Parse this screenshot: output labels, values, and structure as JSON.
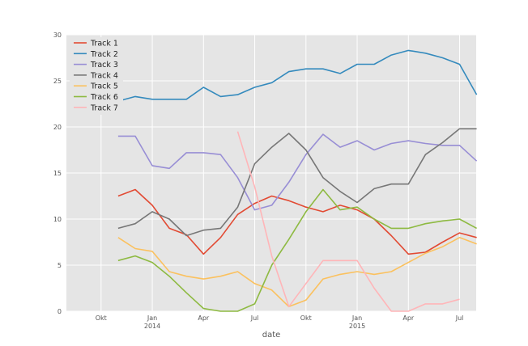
{
  "chart_data": {
    "type": "line",
    "xlabel": "date",
    "ylabel": "",
    "ylim": [
      0,
      30
    ],
    "yticks": [
      0,
      5,
      10,
      15,
      20,
      25,
      30
    ],
    "x_tick_labels": [
      {
        "date": "2013-10",
        "label": "Okt"
      },
      {
        "date": "2014-01",
        "label": "Jan",
        "sub": "2014"
      },
      {
        "date": "2014-04",
        "label": "Apr"
      },
      {
        "date": "2014-07",
        "label": "Jul"
      },
      {
        "date": "2014-10",
        "label": "Okt"
      },
      {
        "date": "2015-01",
        "label": "Jan",
        "sub": "2015"
      },
      {
        "date": "2015-04",
        "label": "Apr"
      },
      {
        "date": "2015-07",
        "label": "Jul"
      }
    ],
    "grid": true,
    "legend_position": "top-left",
    "background": "#e5e5e5",
    "series": [
      {
        "name": "Track 1",
        "color": "#e24a33",
        "points": [
          [
            "2013-11",
            12.5
          ],
          [
            "2013-12",
            13.2
          ],
          [
            "2014-01",
            11.5
          ],
          [
            "2014-02",
            9.0
          ],
          [
            "2014-03",
            8.3
          ],
          [
            "2014-04",
            6.2
          ],
          [
            "2014-05",
            8.0
          ],
          [
            "2014-06",
            10.5
          ],
          [
            "2014-07",
            11.7
          ],
          [
            "2014-08",
            12.5
          ],
          [
            "2014-09",
            12.0
          ],
          [
            "2014-10",
            11.3
          ],
          [
            "2014-11",
            10.8
          ],
          [
            "2014-12",
            11.5
          ],
          [
            "2015-01",
            11.0
          ],
          [
            "2015-02",
            10.0
          ],
          [
            "2015-03",
            8.2
          ],
          [
            "2015-04",
            6.2
          ],
          [
            "2015-05",
            6.4
          ],
          [
            "2015-06",
            7.5
          ],
          [
            "2015-07",
            8.5
          ],
          [
            "2015-08",
            8.0
          ]
        ]
      },
      {
        "name": "Track 2",
        "color": "#348abd",
        "points": [
          [
            "2013-11",
            22.8
          ],
          [
            "2013-12",
            23.3
          ],
          [
            "2014-01",
            23.0
          ],
          [
            "2014-02",
            23.0
          ],
          [
            "2014-03",
            23.0
          ],
          [
            "2014-04",
            24.3
          ],
          [
            "2014-05",
            23.3
          ],
          [
            "2014-06",
            23.5
          ],
          [
            "2014-07",
            24.3
          ],
          [
            "2014-08",
            24.8
          ],
          [
            "2014-09",
            26.0
          ],
          [
            "2014-10",
            26.3
          ],
          [
            "2014-11",
            26.3
          ],
          [
            "2014-12",
            25.8
          ],
          [
            "2015-01",
            26.8
          ],
          [
            "2015-02",
            26.8
          ],
          [
            "2015-03",
            27.8
          ],
          [
            "2015-04",
            28.3
          ],
          [
            "2015-05",
            28.0
          ],
          [
            "2015-06",
            27.5
          ],
          [
            "2015-07",
            26.8
          ],
          [
            "2015-08",
            23.5
          ]
        ]
      },
      {
        "name": "Track 3",
        "color": "#988ed5",
        "points": [
          [
            "2013-11",
            19.0
          ],
          [
            "2013-12",
            19.0
          ],
          [
            "2014-01",
            15.8
          ],
          [
            "2014-02",
            15.5
          ],
          [
            "2014-03",
            17.2
          ],
          [
            "2014-04",
            17.2
          ],
          [
            "2014-05",
            17.0
          ],
          [
            "2014-06",
            14.5
          ],
          [
            "2014-07",
            11.0
          ],
          [
            "2014-08",
            11.5
          ],
          [
            "2014-09",
            14.0
          ],
          [
            "2014-10",
            17.0
          ],
          [
            "2014-11",
            19.2
          ],
          [
            "2014-12",
            17.8
          ],
          [
            "2015-01",
            18.5
          ],
          [
            "2015-02",
            17.5
          ],
          [
            "2015-03",
            18.2
          ],
          [
            "2015-04",
            18.5
          ],
          [
            "2015-05",
            18.2
          ],
          [
            "2015-06",
            18.0
          ],
          [
            "2015-07",
            18.0
          ],
          [
            "2015-08",
            16.3
          ]
        ]
      },
      {
        "name": "Track 4",
        "color": "#777777",
        "points": [
          [
            "2013-11",
            9.0
          ],
          [
            "2013-12",
            9.5
          ],
          [
            "2014-01",
            10.8
          ],
          [
            "2014-02",
            10.0
          ],
          [
            "2014-03",
            8.2
          ],
          [
            "2014-04",
            8.8
          ],
          [
            "2014-05",
            9.0
          ],
          [
            "2014-06",
            11.3
          ],
          [
            "2014-07",
            16.0
          ],
          [
            "2014-08",
            17.8
          ],
          [
            "2014-09",
            19.3
          ],
          [
            "2014-10",
            17.5
          ],
          [
            "2014-11",
            14.5
          ],
          [
            "2014-12",
            13.0
          ],
          [
            "2015-01",
            11.8
          ],
          [
            "2015-02",
            13.3
          ],
          [
            "2015-03",
            13.8
          ],
          [
            "2015-04",
            13.8
          ],
          [
            "2015-05",
            17.0
          ],
          [
            "2015-06",
            18.3
          ],
          [
            "2015-07",
            19.8
          ],
          [
            "2015-08",
            19.8
          ]
        ]
      },
      {
        "name": "Track 5",
        "color": "#fbc15e",
        "points": [
          [
            "2013-11",
            8.0
          ],
          [
            "2013-12",
            6.8
          ],
          [
            "2014-01",
            6.5
          ],
          [
            "2014-02",
            4.3
          ],
          [
            "2014-03",
            3.8
          ],
          [
            "2014-04",
            3.5
          ],
          [
            "2014-05",
            3.8
          ],
          [
            "2014-06",
            4.3
          ],
          [
            "2014-07",
            3.0
          ],
          [
            "2014-08",
            2.3
          ],
          [
            "2014-09",
            0.5
          ],
          [
            "2014-10",
            1.2
          ],
          [
            "2014-11",
            3.5
          ],
          [
            "2014-12",
            4.0
          ],
          [
            "2015-01",
            4.3
          ],
          [
            "2015-02",
            4.0
          ],
          [
            "2015-03",
            4.3
          ],
          [
            "2015-04",
            5.3
          ],
          [
            "2015-05",
            6.3
          ],
          [
            "2015-06",
            7.0
          ],
          [
            "2015-07",
            8.0
          ],
          [
            "2015-08",
            7.3
          ]
        ]
      },
      {
        "name": "Track 6",
        "color": "#8eba42",
        "points": [
          [
            "2013-11",
            5.5
          ],
          [
            "2013-12",
            6.0
          ],
          [
            "2014-01",
            5.3
          ],
          [
            "2014-02",
            3.8
          ],
          [
            "2014-03",
            2.0
          ],
          [
            "2014-04",
            0.3
          ],
          [
            "2014-05",
            0.0
          ],
          [
            "2014-06",
            0.0
          ],
          [
            "2014-07",
            0.8
          ],
          [
            "2014-08",
            5.0
          ],
          [
            "2014-09",
            7.8
          ],
          [
            "2014-10",
            10.8
          ],
          [
            "2014-11",
            13.2
          ],
          [
            "2014-12",
            11.0
          ],
          [
            "2015-01",
            11.3
          ],
          [
            "2015-02",
            10.0
          ],
          [
            "2015-03",
            9.0
          ],
          [
            "2015-04",
            9.0
          ],
          [
            "2015-05",
            9.5
          ],
          [
            "2015-06",
            9.8
          ],
          [
            "2015-07",
            10.0
          ],
          [
            "2015-08",
            9.0
          ]
        ]
      },
      {
        "name": "Track 7",
        "color": "#ffb5b8",
        "points": [
          [
            "2014-06",
            19.5
          ],
          [
            "2014-07",
            13.5
          ],
          [
            "2014-08",
            6.0
          ],
          [
            "2014-09",
            0.5
          ],
          [
            "2014-10",
            3.0
          ],
          [
            "2014-11",
            5.5
          ],
          [
            "2014-12",
            5.5
          ],
          [
            "2015-01",
            5.5
          ],
          [
            "2015-02",
            2.5
          ],
          [
            "2015-03",
            0.0
          ],
          [
            "2015-04",
            0.0
          ],
          [
            "2015-05",
            0.8
          ],
          [
            "2015-06",
            0.8
          ],
          [
            "2015-07",
            1.3
          ]
        ]
      }
    ]
  }
}
